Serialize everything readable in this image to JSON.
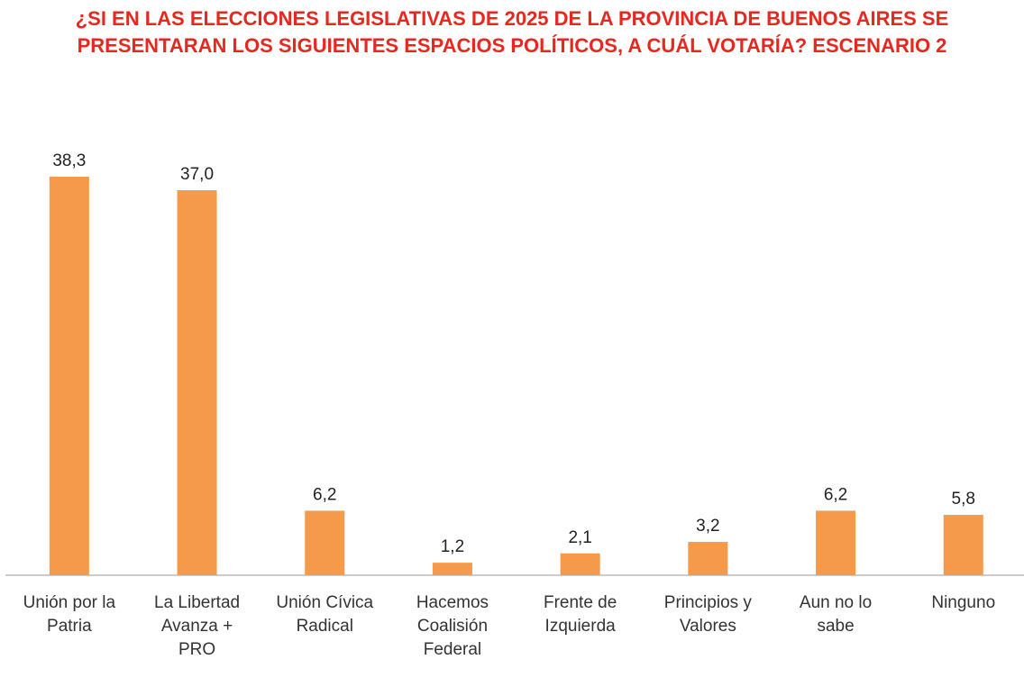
{
  "chart_data": {
    "type": "bar",
    "title": "¿SI EN LAS ELECCIONES LEGISLATIVAS DE 2025 DE LA PROVINCIA DE BUENOS AIRES SE PRESENTARAN LOS SIGUIENTES ESPACIOS POLÍTICOS, A CUÁL VOTARÍA? ESCENARIO 2",
    "categories": [
      "Unión por la Patria",
      "La Libertad Avanza + PRO",
      "Unión Cívica Radical",
      "Hacemos Coalisión Federal",
      "Frente de Izquierda",
      "Principios y Valores",
      "Aun no lo sabe",
      "Ninguno"
    ],
    "values": [
      38.3,
      37.0,
      6.2,
      1.2,
      2.1,
      3.2,
      6.2,
      5.8
    ],
    "value_labels": [
      "38,3",
      "37,0",
      "6,2",
      "1,2",
      "2,1",
      "3,2",
      "6,2",
      "5,8"
    ],
    "color": "#f5994a"
  }
}
